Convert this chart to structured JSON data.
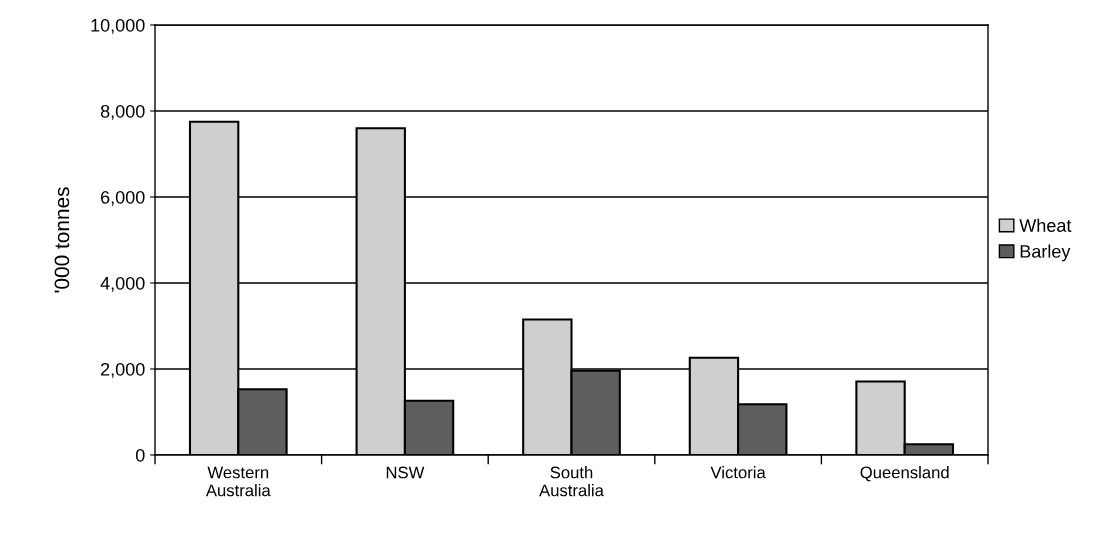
{
  "chart_data": {
    "type": "bar",
    "ylabel": "'000 tonnes",
    "categories": [
      "Western\nAustralia",
      "NSW",
      "South\nAustralia",
      "Victoria",
      "Queensland"
    ],
    "series": [
      {
        "name": "Wheat",
        "color": "#cfcfcf",
        "values": [
          7750,
          7600,
          3150,
          2260,
          1710
        ]
      },
      {
        "name": "Barley",
        "color": "#5e5e5e",
        "values": [
          1530,
          1260,
          1960,
          1180,
          250
        ]
      }
    ],
    "ylim": [
      0,
      10000
    ],
    "yticks": [
      {
        "value": 0,
        "label": "0"
      },
      {
        "value": 2000,
        "label": "2,000"
      },
      {
        "value": 4000,
        "label": "4,000"
      },
      {
        "value": 6000,
        "label": "6,000"
      },
      {
        "value": 8000,
        "label": "8,000"
      },
      {
        "value": 10000,
        "label": "10,000"
      }
    ],
    "grid": "y",
    "legend": "right"
  }
}
